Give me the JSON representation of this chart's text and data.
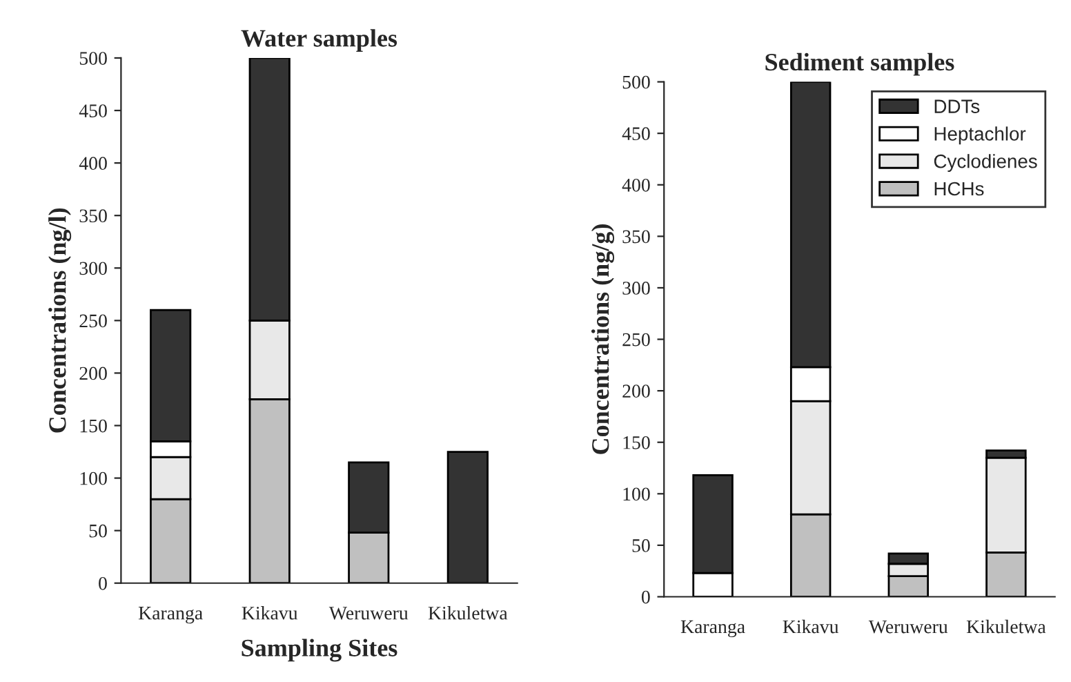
{
  "chart_data": [
    {
      "type": "bar",
      "title": "Water samples",
      "xlabel": "Sampling Sites",
      "ylabel": "Concentrations (ng/l)",
      "categories": [
        "Karanga",
        "Kikavu",
        "Weruweru",
        "Kikuletwa"
      ],
      "stacked": true,
      "ylim": [
        0,
        500
      ],
      "yticks": [
        0,
        50,
        100,
        150,
        200,
        250,
        300,
        350,
        400,
        450,
        500
      ],
      "series": [
        {
          "color": "#c0c0c0",
          "values": [
            80,
            175,
            48,
            null
          ]
        },
        {
          "color": "#e8e8e8",
          "values": [
            40,
            75,
            null,
            null
          ]
        },
        {
          "color": "#ffffff",
          "values": [
            15,
            null,
            null,
            null
          ]
        },
        {
          "color": "#333333",
          "values": [
            125,
            250,
            67,
            125
          ]
        }
      ]
    },
    {
      "type": "bar",
      "title": "Sediment samples",
      "ylabel": "Concentrations (ng/g)",
      "categories": [
        "Karanga",
        "Kikavu",
        "Weruweru",
        "Kikuletwa"
      ],
      "stacked": true,
      "ylim": [
        0,
        500
      ],
      "yticks": [
        0,
        50,
        100,
        150,
        200,
        250,
        300,
        350,
        400,
        450,
        500
      ],
      "legend": "top right",
      "series": [
        {
          "name": "HCHs",
          "color": "#c0c0c0",
          "values": [
            null,
            80,
            20,
            43
          ]
        },
        {
          "name": "Cyclodienes",
          "color": "#e8e8e8",
          "values": [
            null,
            110,
            12,
            92
          ]
        },
        {
          "name": "Heptachlor",
          "color": "#ffffff",
          "values": [
            23,
            33,
            null,
            null
          ]
        },
        {
          "name": "DDTs",
          "color": "#333333",
          "values": [
            95,
            277,
            10,
            7
          ]
        }
      ]
    }
  ]
}
